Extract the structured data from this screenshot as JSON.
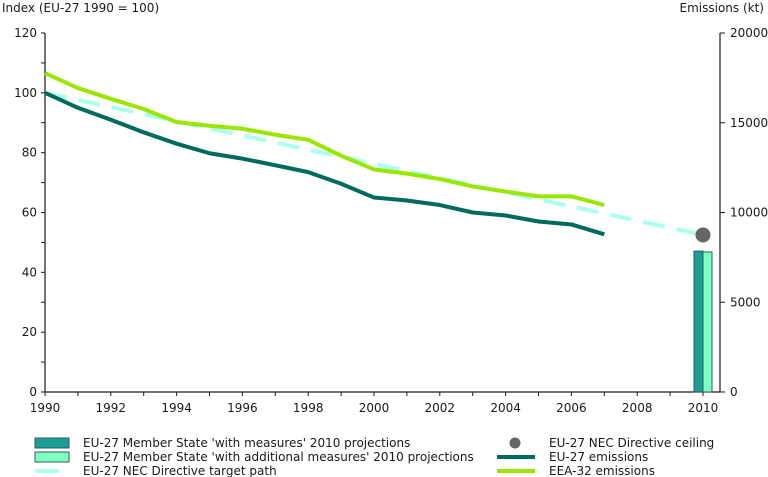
{
  "chart_data": {
    "type": "line",
    "title": "",
    "ylabel": "Index (EU-27 1990 = 100)",
    "ylabel_right": "Emissions (kt)",
    "xlabel": "",
    "ylim": [
      0,
      120
    ],
    "ylim_right": [
      0,
      20000
    ],
    "xlim": [
      1990,
      2010
    ],
    "y_ticks": [
      "0",
      "20",
      "40",
      "60",
      "80",
      "100",
      "120"
    ],
    "y_ticks_right": [
      "0",
      "5000",
      "10000",
      "15000",
      "20000"
    ],
    "x_ticks": [
      "1990",
      "1992",
      "1994",
      "1996",
      "1998",
      "2000",
      "2002",
      "2004",
      "2006",
      "2008",
      "2010"
    ],
    "grid": false,
    "legend_position": "bottom",
    "series": [
      {
        "name": "EU-27 emissions",
        "kind": "line",
        "color": "#006b5c",
        "x": [
          1990,
          1991,
          1992,
          1993,
          1994,
          1995,
          1996,
          1997,
          1998,
          1999,
          2000,
          2001,
          2002,
          2003,
          2004,
          2005,
          2006,
          2007
        ],
        "values": [
          100,
          95,
          91,
          86.8,
          83,
          79.8,
          78,
          75.8,
          73.5,
          69.6,
          65,
          64,
          62.5,
          60,
          59,
          57,
          56,
          52.7
        ]
      },
      {
        "name": "EEA-32 emissions",
        "kind": "line",
        "color": "#99e600",
        "x": [
          1990,
          1991,
          1992,
          1993,
          1994,
          1995,
          1996,
          1997,
          1998,
          1999,
          2000,
          2001,
          2002,
          2003,
          2004,
          2005,
          2006,
          2007
        ],
        "values": [
          106.6,
          101.6,
          98,
          94.6,
          90.2,
          89,
          88,
          86,
          84.3,
          79,
          74.4,
          73,
          71.2,
          68.7,
          67,
          65.4,
          65.4,
          62.5
        ]
      },
      {
        "name": "EU-27 NEC Directive target path",
        "kind": "dashed-line",
        "color": "#aaffee",
        "x": [
          1990,
          2010
        ],
        "values": [
          100,
          52.5
        ]
      },
      {
        "name": "EU-27 NEC Directive ceiling",
        "kind": "point",
        "axis": "right",
        "color": "#666666",
        "x": [
          2010
        ],
        "values": [
          8750
        ]
      },
      {
        "name": "EU-27 Member State 'with measures' 2010 projections",
        "kind": "bar",
        "axis": "right",
        "color": "#1a9e96",
        "x": [
          2010
        ],
        "values": [
          7850
        ]
      },
      {
        "name": "EU-27 Member State 'with additional measures' 2010 projections",
        "kind": "bar",
        "axis": "right",
        "color": "#80ffc0",
        "x": [
          2010
        ],
        "values": [
          7800
        ]
      }
    ],
    "legend": {
      "left": [
        {
          "label": "EU-27 Member State 'with measures' 2010 projections",
          "swatch": "bar",
          "color": "#1a9e96"
        },
        {
          "label": "EU-27 Member State 'with additional measures' 2010 projections",
          "swatch": "bar",
          "color": "#80ffc0"
        },
        {
          "label": "EU-27 NEC Directive target path",
          "swatch": "line",
          "color": "#aaffee"
        }
      ],
      "right": [
        {
          "label": "EU-27 NEC Directive ceiling",
          "swatch": "dot",
          "color": "#666666"
        },
        {
          "label": "EU-27 emissions",
          "swatch": "line",
          "color": "#006b5c"
        },
        {
          "label": "EEA-32 emissions",
          "swatch": "line",
          "color": "#99e600"
        }
      ]
    }
  }
}
